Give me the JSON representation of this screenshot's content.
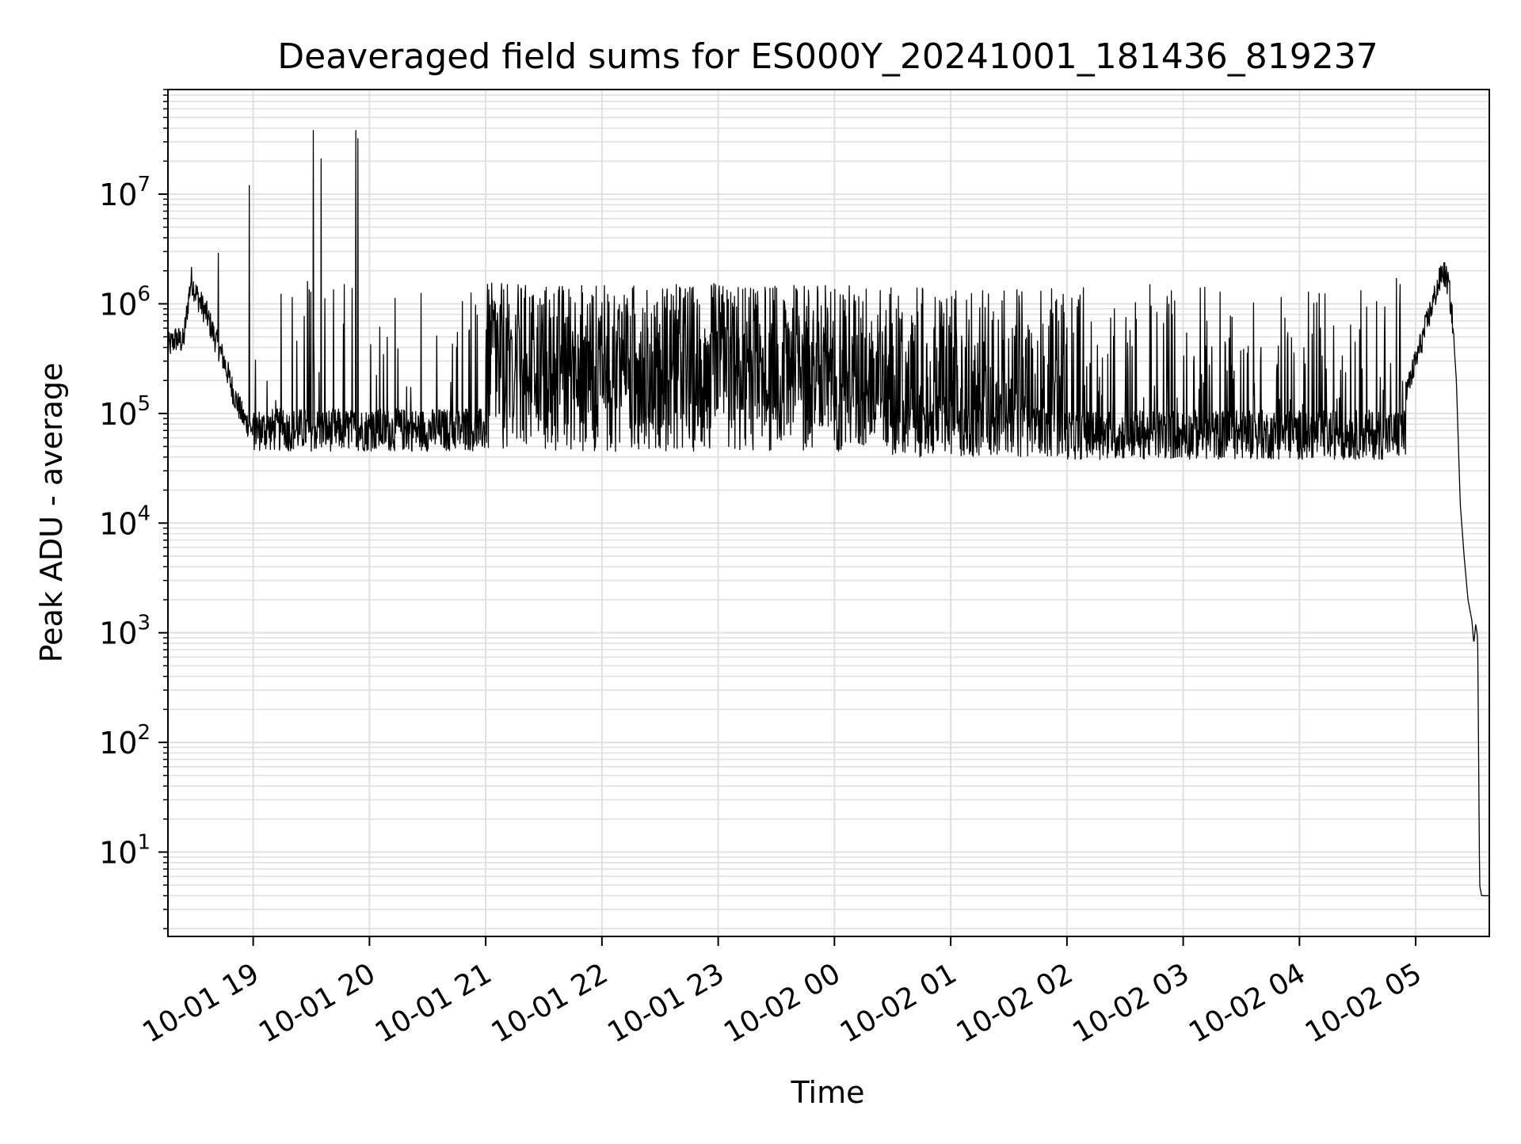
{
  "chart_data": {
    "type": "line",
    "title": "Deaveraged field sums for ES000Y_20241001_181436_819237",
    "xlabel": "Time",
    "ylabel": "Peak ADU - average",
    "yscale": "log",
    "ylim": [
      1.7,
      90000000
    ],
    "xlim": [
      "2024-10-01 18:16",
      "2024-10-02 05:38"
    ],
    "grid": true,
    "line_color": "#000000",
    "grid_color": "#e0e0e0",
    "x_ticks": [
      {
        "label": "10-01 19",
        "t": "2024-10-01 19:00"
      },
      {
        "label": "10-01 20",
        "t": "2024-10-01 20:00"
      },
      {
        "label": "10-01 21",
        "t": "2024-10-01 21:00"
      },
      {
        "label": "10-01 22",
        "t": "2024-10-01 22:00"
      },
      {
        "label": "10-01 23",
        "t": "2024-10-01 23:00"
      },
      {
        "label": "10-02 00",
        "t": "2024-10-02 00:00"
      },
      {
        "label": "10-02 01",
        "t": "2024-10-02 01:00"
      },
      {
        "label": "10-02 02",
        "t": "2024-10-02 02:00"
      },
      {
        "label": "10-02 03",
        "t": "2024-10-02 03:00"
      },
      {
        "label": "10-02 04",
        "t": "2024-10-02 04:00"
      },
      {
        "label": "10-02 05",
        "t": "2024-10-02 05:00"
      }
    ],
    "y_ticks": [
      {
        "base": "10",
        "exp": "1",
        "value": 10
      },
      {
        "base": "10",
        "exp": "2",
        "value": 100
      },
      {
        "base": "10",
        "exp": "3",
        "value": 1000
      },
      {
        "base": "10",
        "exp": "4",
        "value": 10000
      },
      {
        "base": "10",
        "exp": "5",
        "value": 100000
      },
      {
        "base": "10",
        "exp": "6",
        "value": 1000000
      },
      {
        "base": "10",
        "exp": "7",
        "value": 10000000
      }
    ],
    "series": [
      {
        "points": [
          [
            "2024-10-01 18:16",
            400000
          ],
          [
            "2024-10-01 18:20",
            480000
          ],
          [
            "2024-10-01 18:24",
            450000
          ],
          [
            "2024-10-01 18:26",
            900000
          ],
          [
            "2024-10-01 18:28",
            1700000
          ],
          [
            "2024-10-01 18:30",
            1300000
          ],
          [
            "2024-10-01 18:33",
            1000000
          ],
          [
            "2024-10-01 18:36",
            800000
          ],
          [
            "2024-10-01 18:40",
            500000
          ],
          [
            "2024-10-01 18:45",
            300000
          ],
          [
            "2024-10-01 18:50",
            150000
          ],
          [
            "2024-10-01 18:55",
            90000
          ],
          [
            "2024-10-01 19:00",
            70000
          ],
          [
            "2024-10-01 19:15",
            65000
          ],
          [
            "2024-10-01 19:30",
            62000
          ],
          [
            "2024-10-01 20:00",
            62000
          ],
          [
            "2024-10-01 20:30",
            65000
          ],
          [
            "2024-10-01 21:00",
            80000
          ],
          [
            "2024-10-01 21:30",
            250000
          ],
          [
            "2024-10-01 22:00",
            300000
          ],
          [
            "2024-10-01 23:00",
            300000
          ],
          [
            "2024-10-02 00:00",
            280000
          ],
          [
            "2024-10-02 00:30",
            200000
          ],
          [
            "2024-10-02 01:00",
            120000
          ],
          [
            "2024-10-02 01:30",
            90000
          ],
          [
            "2024-10-02 02:00",
            70000
          ],
          [
            "2024-10-02 02:30",
            62000
          ],
          [
            "2024-10-02 03:00",
            62000
          ],
          [
            "2024-10-02 03:30",
            64000
          ],
          [
            "2024-10-02 04:00",
            66000
          ],
          [
            "2024-10-02 04:30",
            70000
          ],
          [
            "2024-10-02 04:45",
            80000
          ],
          [
            "2024-10-02 04:55",
            150000
          ],
          [
            "2024-10-02 05:00",
            300000
          ],
          [
            "2024-10-02 05:05",
            600000
          ],
          [
            "2024-10-02 05:10",
            1200000
          ],
          [
            "2024-10-02 05:14",
            2000000
          ],
          [
            "2024-10-02 05:17",
            1500000
          ],
          [
            "2024-10-02 05:19",
            700000
          ],
          [
            "2024-10-02 05:21",
            200000
          ],
          [
            "2024-10-02 05:23",
            15000
          ],
          [
            "2024-10-02 05:25",
            5000
          ],
          [
            "2024-10-02 05:27",
            2000
          ],
          [
            "2024-10-02 05:29",
            1300
          ],
          [
            "2024-10-02 05:30",
            800
          ],
          [
            "2024-10-02 05:31",
            1200
          ],
          [
            "2024-10-02 05:32",
            900
          ],
          [
            "2024-10-02 05:33",
            5
          ],
          [
            "2024-10-02 05:34",
            4
          ],
          [
            "2024-10-02 05:38",
            4
          ]
        ],
        "spikes": [
          [
            "2024-10-01 18:42",
            2900000
          ],
          [
            "2024-10-01 18:58",
            12000000
          ],
          [
            "2024-10-01 19:31",
            38000000
          ],
          [
            "2024-10-01 19:35",
            21000000
          ],
          [
            "2024-10-01 19:28",
            1600000
          ],
          [
            "2024-10-01 19:53",
            38000000
          ],
          [
            "2024-10-01 19:54",
            32000000
          ],
          [
            "2024-10-01 19:47",
            1500000
          ],
          [
            "2024-10-02 04:50",
            1700000
          ],
          [
            "2024-10-02 04:52",
            1500000
          ]
        ],
        "noise_bands": [
          {
            "start": "2024-10-01 19:00",
            "end": "2024-10-01 21:00",
            "low": 45000,
            "base": 62000,
            "high": 1500000,
            "spike_fraction": 0.06
          },
          {
            "start": "2024-10-01 21:00",
            "end": "2024-10-02 00:30",
            "low": 45000,
            "base": 70000,
            "high": 1550000,
            "spike_fraction": 0.75
          },
          {
            "start": "2024-10-02 00:30",
            "end": "2024-10-02 02:00",
            "low": 40000,
            "base": 65000,
            "high": 1400000,
            "spike_fraction": 0.45
          },
          {
            "start": "2024-10-02 02:00",
            "end": "2024-10-02 04:55",
            "low": 38000,
            "base": 60000,
            "high": 1500000,
            "spike_fraction": 0.14
          }
        ]
      }
    ]
  }
}
